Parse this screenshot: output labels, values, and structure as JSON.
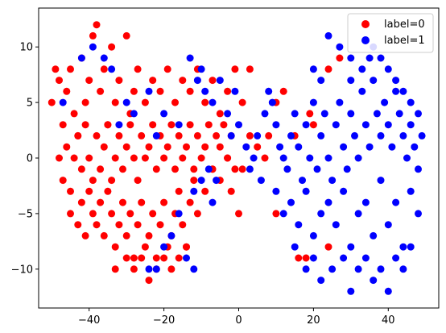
{
  "chart_data": {
    "type": "scatter",
    "xlim": [
      -53.5,
      53.5
    ],
    "ylim": [
      -13.5,
      13.5
    ],
    "xticks": [
      -40,
      -20,
      0,
      20,
      40
    ],
    "yticks": [
      -10,
      -5,
      0,
      5,
      10
    ],
    "xtick_labels": [
      "−40",
      "−20",
      "0",
      "20",
      "40"
    ],
    "ytick_labels": [
      "−10",
      "−5",
      "0",
      "5",
      "10"
    ],
    "grid": false,
    "legend_position": "top-right",
    "series": [
      {
        "name": "label=0",
        "color": "#ff0000",
        "points": [
          [
            -50,
            5
          ],
          [
            -49,
            8
          ],
          [
            -48,
            7
          ],
          [
            -47,
            3
          ],
          [
            -46,
            6
          ],
          [
            -45,
            8
          ],
          [
            -44,
            4
          ],
          [
            -43,
            2
          ],
          [
            -42,
            9
          ],
          [
            -41,
            5
          ],
          [
            -40,
            7
          ],
          [
            -39,
            11
          ],
          [
            -38,
            12
          ],
          [
            -37,
            6
          ],
          [
            -36,
            8
          ],
          [
            -35,
            3
          ],
          [
            -34,
            10
          ],
          [
            -33,
            5
          ],
          [
            -32,
            7
          ],
          [
            -30,
            11
          ],
          [
            -29,
            4
          ],
          [
            -28,
            6
          ],
          [
            -27,
            8
          ],
          [
            -25,
            5
          ],
          [
            -23,
            7
          ],
          [
            -21,
            6
          ],
          [
            -19,
            8
          ],
          [
            -17,
            5
          ],
          [
            -15,
            7
          ],
          [
            -13,
            6
          ],
          [
            -11,
            8
          ],
          [
            -9,
            5
          ],
          [
            -7,
            7
          ],
          [
            -5,
            4
          ],
          [
            -3,
            6
          ],
          [
            -1,
            8
          ],
          [
            1,
            5
          ],
          [
            3,
            8
          ],
          [
            -48,
            0
          ],
          [
            -47,
            -2
          ],
          [
            -46,
            1
          ],
          [
            -45,
            -3
          ],
          [
            -44,
            0
          ],
          [
            -43,
            2
          ],
          [
            -42,
            -1
          ],
          [
            -41,
            3
          ],
          [
            -40,
            0
          ],
          [
            -39,
            -2
          ],
          [
            -38,
            2
          ],
          [
            -37,
            -1
          ],
          [
            -36,
            1
          ],
          [
            -35,
            3
          ],
          [
            -34,
            -2
          ],
          [
            -33,
            0
          ],
          [
            -32,
            2
          ],
          [
            -31,
            -1
          ],
          [
            -30,
            1
          ],
          [
            -29,
            3
          ],
          [
            -28,
            0
          ],
          [
            -27,
            -2
          ],
          [
            -26,
            2
          ],
          [
            -25,
            0
          ],
          [
            -24,
            1
          ],
          [
            -23,
            3
          ],
          [
            -22,
            -1
          ],
          [
            -21,
            2
          ],
          [
            -20,
            0
          ],
          [
            -19,
            1
          ],
          [
            -18,
            3
          ],
          [
            -17,
            -1
          ],
          [
            -16,
            2
          ],
          [
            -15,
            0
          ],
          [
            -14,
            1
          ],
          [
            -13,
            3
          ],
          [
            -12,
            -1
          ],
          [
            -11,
            2
          ],
          [
            -10,
            0
          ],
          [
            -9,
            1
          ],
          [
            -8,
            3
          ],
          [
            -7,
            -1
          ],
          [
            -6,
            2
          ],
          [
            -5,
            1
          ],
          [
            -4,
            3
          ],
          [
            -3,
            0
          ],
          [
            -2,
            2
          ],
          [
            -1,
            -1
          ],
          [
            -45,
            -5
          ],
          [
            -43,
            -6
          ],
          [
            -42,
            -4
          ],
          [
            -41,
            -7
          ],
          [
            -40,
            -3
          ],
          [
            -39,
            -5
          ],
          [
            -38,
            -6
          ],
          [
            -37,
            -4
          ],
          [
            -36,
            -7
          ],
          [
            -35,
            -3
          ],
          [
            -34,
            -5
          ],
          [
            -33,
            -8
          ],
          [
            -32,
            -6
          ],
          [
            -31,
            -4
          ],
          [
            -30,
            -7
          ],
          [
            -29,
            -5
          ],
          [
            -28,
            -9
          ],
          [
            -27,
            -6
          ],
          [
            -26,
            -4
          ],
          [
            -25,
            -8
          ],
          [
            -24,
            -7
          ],
          [
            -23,
            -5
          ],
          [
            -22,
            -9
          ],
          [
            -21,
            -6
          ],
          [
            -20,
            -4
          ],
          [
            -19,
            -8
          ],
          [
            -18,
            -7
          ],
          [
            -17,
            -5
          ],
          [
            -16,
            -3
          ],
          [
            -15,
            -6
          ],
          [
            -14,
            -8
          ],
          [
            -13,
            -4
          ],
          [
            -12,
            -2
          ],
          [
            -11,
            -5
          ],
          [
            -33,
            -10
          ],
          [
            -30,
            -9
          ],
          [
            -28,
            -10
          ],
          [
            -26,
            -9
          ],
          [
            -24,
            -11
          ],
          [
            -22,
            -10
          ],
          [
            -20,
            -9
          ],
          [
            -18,
            -10
          ],
          [
            -16,
            -9
          ],
          [
            -14,
            -8
          ],
          [
            -9,
            -3
          ],
          [
            -7,
            -1
          ],
          [
            -5,
            -2
          ],
          [
            -3,
            0
          ],
          [
            -2,
            -3
          ],
          [
            0,
            -5
          ],
          [
            1,
            -1
          ],
          [
            3,
            2
          ],
          [
            5,
            1
          ],
          [
            7,
            0
          ],
          [
            8,
            2
          ],
          [
            10,
            5
          ],
          [
            12,
            6
          ],
          [
            15,
            2
          ],
          [
            19,
            4
          ],
          [
            20,
            3
          ],
          [
            24,
            8
          ],
          [
            27,
            9
          ],
          [
            16,
            -9
          ],
          [
            18,
            -9
          ],
          [
            24,
            -8
          ],
          [
            10,
            -5
          ]
        ]
      },
      {
        "name": "label=1",
        "color": "#0000ff",
        "points": [
          [
            -47,
            5
          ],
          [
            -42,
            9
          ],
          [
            -39,
            10
          ],
          [
            -36,
            9
          ],
          [
            -34,
            8
          ],
          [
            -32,
            3
          ],
          [
            -30,
            5
          ],
          [
            -28,
            4
          ],
          [
            -24,
            6
          ],
          [
            -22,
            2
          ],
          [
            -20,
            4
          ],
          [
            -16,
            3
          ],
          [
            -13,
            9
          ],
          [
            -11,
            7
          ],
          [
            -10,
            8
          ],
          [
            -9,
            6
          ],
          [
            -7,
            5
          ],
          [
            -5,
            7
          ],
          [
            -3,
            4
          ],
          [
            -2,
            2
          ],
          [
            -1,
            6
          ],
          [
            0,
            3
          ],
          [
            2,
            1
          ],
          [
            3,
            -1
          ],
          [
            4,
            0
          ],
          [
            5,
            2
          ],
          [
            6,
            -2
          ],
          [
            7,
            4
          ],
          [
            8,
            6
          ],
          [
            9,
            5
          ],
          [
            -12,
            -10
          ],
          [
            -14,
            -9
          ],
          [
            -16,
            -5
          ],
          [
            -18,
            -7
          ],
          [
            -20,
            -8
          ],
          [
            -22,
            -10
          ],
          [
            -24,
            -10
          ],
          [
            -12,
            -3
          ],
          [
            -10,
            -2
          ],
          [
            -8,
            -1
          ],
          [
            -7,
            -4
          ],
          [
            -6,
            -2
          ],
          [
            10,
            3
          ],
          [
            11,
            1
          ],
          [
            12,
            0
          ],
          [
            13,
            -1
          ],
          [
            14,
            2
          ],
          [
            15,
            4
          ],
          [
            16,
            1
          ],
          [
            17,
            -2
          ],
          [
            18,
            3
          ],
          [
            19,
            0
          ],
          [
            20,
            5
          ],
          [
            21,
            -1
          ],
          [
            22,
            2
          ],
          [
            23,
            4
          ],
          [
            24,
            0
          ],
          [
            25,
            -2
          ],
          [
            26,
            3
          ],
          [
            27,
            5
          ],
          [
            28,
            1
          ],
          [
            29,
            -1
          ],
          [
            30,
            4
          ],
          [
            31,
            2
          ],
          [
            32,
            0
          ],
          [
            33,
            6
          ],
          [
            34,
            3
          ],
          [
            35,
            1
          ],
          [
            36,
            7
          ],
          [
            37,
            4
          ],
          [
            38,
            2
          ],
          [
            39,
            5
          ],
          [
            40,
            3
          ],
          [
            41,
            1
          ],
          [
            42,
            6
          ],
          [
            43,
            4
          ],
          [
            44,
            2
          ],
          [
            45,
            0
          ],
          [
            46,
            3
          ],
          [
            47,
            1
          ],
          [
            48,
            -1
          ],
          [
            49,
            2
          ],
          [
            10,
            -3
          ],
          [
            12,
            -5
          ],
          [
            14,
            -4
          ],
          [
            16,
            -6
          ],
          [
            18,
            -3
          ],
          [
            20,
            -7
          ],
          [
            22,
            -5
          ],
          [
            24,
            -4
          ],
          [
            26,
            -6
          ],
          [
            28,
            -3
          ],
          [
            30,
            -8
          ],
          [
            32,
            -5
          ],
          [
            34,
            -4
          ],
          [
            36,
            -7
          ],
          [
            38,
            -2
          ],
          [
            40,
            -6
          ],
          [
            42,
            -4
          ],
          [
            44,
            -8
          ],
          [
            46,
            -3
          ],
          [
            48,
            -5
          ],
          [
            15,
            -8
          ],
          [
            18,
            -10
          ],
          [
            20,
            -9
          ],
          [
            22,
            -11
          ],
          [
            25,
            -10
          ],
          [
            28,
            -9
          ],
          [
            30,
            -12
          ],
          [
            32,
            -10
          ],
          [
            34,
            -9
          ],
          [
            36,
            -11
          ],
          [
            38,
            -10
          ],
          [
            40,
            -12
          ],
          [
            42,
            -9
          ],
          [
            44,
            -10
          ],
          [
            46,
            -8
          ],
          [
            24,
            11
          ],
          [
            27,
            10
          ],
          [
            30,
            9
          ],
          [
            33,
            8
          ],
          [
            36,
            10
          ],
          [
            38,
            9
          ],
          [
            40,
            8
          ],
          [
            42,
            7
          ],
          [
            44,
            6
          ],
          [
            46,
            5
          ],
          [
            48,
            4
          ],
          [
            20,
            8
          ],
          [
            22,
            7
          ],
          [
            30,
            7
          ],
          [
            35,
            9
          ]
        ]
      }
    ]
  }
}
